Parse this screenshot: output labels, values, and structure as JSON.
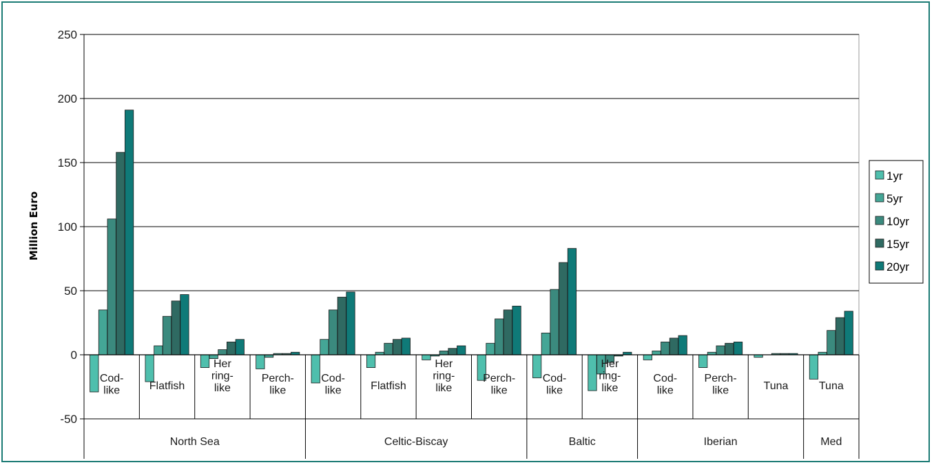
{
  "chart_data": {
    "type": "bar",
    "title": "",
    "ylabel": "Million Euro",
    "ylim": [
      -50,
      250
    ],
    "yticks": [
      -50,
      0,
      50,
      100,
      150,
      200,
      250
    ],
    "grid": "horizontal",
    "legend": "right",
    "groups": [
      {
        "name": "North Sea",
        "count": 4
      },
      {
        "name": "Celtic-Biscay",
        "count": 4
      },
      {
        "name": "Baltic",
        "count": 2
      },
      {
        "name": "Iberian",
        "count": 3
      },
      {
        "name": "Med",
        "count": 1
      }
    ],
    "categories": [
      "Cod-like",
      "Flatfish",
      "Herring-like",
      "Perch-like",
      "Cod-like",
      "Flatfish",
      "Herring-like",
      "Perch-like",
      "Cod-like",
      "Herring-like",
      "Cod-like",
      "Perch-like",
      "Tuna",
      "Tuna"
    ],
    "category_label_lines": [
      [
        "Cod-",
        "like"
      ],
      [
        "Flatfish"
      ],
      [
        "Her",
        "ring-",
        "like"
      ],
      [
        "Perch-",
        "like"
      ],
      [
        "Cod-",
        "like"
      ],
      [
        "Flatfish"
      ],
      [
        "Her",
        "ring-",
        "like"
      ],
      [
        "Perch-",
        "like"
      ],
      [
        "Cod-",
        "like"
      ],
      [
        "Her",
        "ring-",
        "like"
      ],
      [
        "Cod-",
        "like"
      ],
      [
        "Perch-",
        "like"
      ],
      [
        "Tuna"
      ],
      [
        "Tuna"
      ]
    ],
    "series": [
      {
        "name": "1yr",
        "color": "#4fbfad",
        "values": [
          -29,
          -21,
          -10,
          -11,
          -22,
          -10,
          -4,
          -20,
          -18,
          -28,
          -4,
          -10,
          -2,
          -19
        ]
      },
      {
        "name": "5yr",
        "color": "#44a696",
        "values": [
          35,
          7,
          -3,
          -2,
          12,
          2,
          -1,
          9,
          17,
          -15,
          3,
          2,
          0,
          2
        ]
      },
      {
        "name": "10yr",
        "color": "#3b8a7e",
        "values": [
          106,
          30,
          4,
          1,
          35,
          9,
          3,
          28,
          51,
          -6,
          10,
          7,
          1,
          19
        ]
      },
      {
        "name": "15yr",
        "color": "#2f6a62",
        "values": [
          158,
          42,
          10,
          1,
          45,
          12,
          5,
          35,
          72,
          -1,
          13,
          9,
          1,
          29
        ]
      },
      {
        "name": "20yr",
        "color": "#0f7a78",
        "values": [
          191,
          47,
          12,
          2,
          49,
          13,
          7,
          38,
          83,
          2,
          15,
          10,
          1,
          34
        ]
      }
    ]
  }
}
